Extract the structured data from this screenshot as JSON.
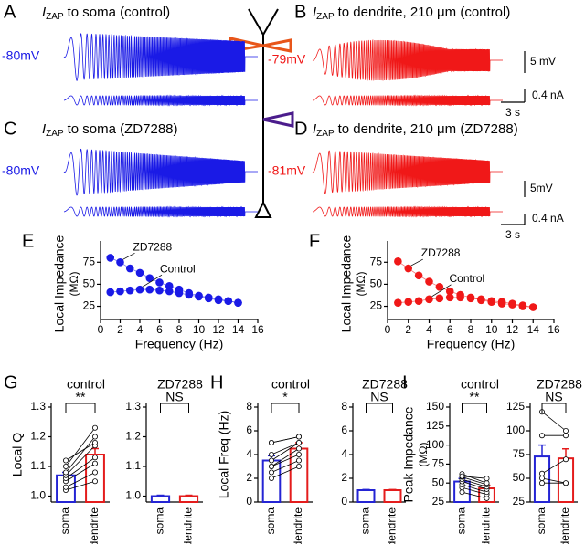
{
  "traces": [
    {
      "panel": "A",
      "current": "I",
      "current_sub": "ZAP",
      "title": "to soma (control)",
      "vm": "-80mV",
      "color": "#1a1ae6"
    },
    {
      "panel": "B",
      "current": "I",
      "current_sub": "ZAP",
      "title": "to dendrite, 210 μm (control)",
      "vm": "-79mV",
      "color": "#f01818"
    },
    {
      "panel": "C",
      "current": "I",
      "current_sub": "ZAP",
      "title": "to soma (ZD7288)",
      "vm": "-80mV",
      "color": "#1a1ae6"
    },
    {
      "panel": "D",
      "current": "I",
      "current_sub": "ZAP",
      "title": "to dendrite, 210 μm (ZD7288)",
      "vm": "-81mV",
      "color": "#f01818"
    }
  ],
  "scale_bars": [
    {
      "voltage": "5 mV",
      "current": "0.4 nA",
      "time": "3 s"
    },
    {
      "voltage": "5mV",
      "current": "0.4 nA",
      "time": "3 s"
    }
  ],
  "chart_data": [
    {
      "type": "line",
      "panel": "E",
      "xlabel": "Frequency (Hz)",
      "ylabel": "Local Impedance",
      "yunit": "(MΩ)",
      "x": [
        1,
        2,
        3,
        4,
        5,
        6,
        7,
        8,
        9,
        10,
        11,
        12,
        13,
        14
      ],
      "series": [
        {
          "name": "ZD7288",
          "color": "#1a1ae6",
          "values": [
            80,
            75,
            68,
            63,
            57,
            52,
            48,
            44,
            40,
            37,
            35,
            33,
            31,
            29
          ]
        },
        {
          "name": "Control",
          "color": "#1a1ae6",
          "values": [
            41,
            42,
            43,
            44,
            44,
            43,
            42,
            40,
            38,
            36,
            34,
            32,
            31,
            29
          ]
        }
      ],
      "xlim": [
        0,
        16
      ],
      "xticks": [
        0,
        2,
        4,
        6,
        8,
        10,
        12,
        14,
        16
      ],
      "ylim": [
        10,
        95
      ],
      "yticks": [
        25,
        50,
        75
      ]
    },
    {
      "type": "line",
      "panel": "F",
      "xlabel": "Frequency (Hz)",
      "ylabel": "Local Impedance",
      "yunit": "(MΩ)",
      "x": [
        1,
        2,
        3,
        4,
        5,
        6,
        7,
        8,
        9,
        10,
        11,
        12,
        13,
        14
      ],
      "series": [
        {
          "name": "ZD7288",
          "color": "#f01818",
          "values": [
            76,
            68,
            60,
            53,
            47,
            42,
            38,
            35,
            32,
            30,
            28,
            27,
            25,
            24
          ]
        },
        {
          "name": "Control",
          "color": "#f01818",
          "values": [
            29,
            30,
            31,
            33,
            34,
            35,
            35,
            34,
            33,
            31,
            30,
            28,
            26,
            24
          ]
        }
      ],
      "xlim": [
        0,
        16
      ],
      "xticks": [
        0,
        2,
        4,
        6,
        8,
        10,
        12,
        14,
        16
      ],
      "ylim": [
        10,
        95
      ],
      "yticks": [
        25,
        50,
        75
      ]
    },
    {
      "type": "bar",
      "panel": "G",
      "title": "control",
      "ylabel": "Local Q",
      "significance": "**",
      "categories": [
        "soma",
        "dendrite"
      ],
      "values": [
        1.07,
        1.14
      ],
      "errors": [
        0.01,
        0.02
      ],
      "colors": [
        "#2424d4",
        "#e41c1c"
      ],
      "paired": [
        [
          1.02,
          1.05
        ],
        [
          1.03,
          1.08
        ],
        [
          1.05,
          1.11
        ],
        [
          1.06,
          1.13
        ],
        [
          1.07,
          1.17
        ],
        [
          1.08,
          1.2
        ],
        [
          1.1,
          1.23
        ],
        [
          1.12,
          1.18
        ]
      ],
      "ylim": [
        0.98,
        1.3
      ],
      "yticks": [
        {
          "value": 1.0,
          "label": "1.0"
        },
        1.1,
        1.2,
        1.3
      ]
    },
    {
      "type": "bar",
      "title": "ZD7288",
      "significance": "NS",
      "categories": [
        "soma",
        "dendrite"
      ],
      "values": [
        1.0,
        1.0
      ],
      "errors": [
        0.003,
        0.003
      ],
      "colors": [
        "#2424d4",
        "#e41c1c"
      ],
      "ylim": [
        0.98,
        1.3
      ],
      "yticks": [
        {
          "value": 1.0,
          "label": "1.0"
        },
        1.1,
        1.2,
        1.3
      ]
    },
    {
      "type": "bar",
      "panel": "H",
      "title": "control",
      "ylabel": "Local Freq (Hz)",
      "significance": "*",
      "categories": [
        "soma",
        "dendrite"
      ],
      "values": [
        3.5,
        4.5
      ],
      "errors": [
        0.4,
        0.5
      ],
      "colors": [
        "#2424d4",
        "#e41c1c"
      ],
      "paired": [
        [
          2.0,
          3.0
        ],
        [
          2.5,
          3.5
        ],
        [
          3.0,
          4.0
        ],
        [
          3.0,
          4.5
        ],
        [
          3.5,
          5.0
        ],
        [
          4.0,
          5.0
        ],
        [
          5.0,
          5.5
        ],
        [
          5.0,
          5.5
        ]
      ],
      "ylim": [
        0,
        8
      ],
      "yticks": [
        0,
        2,
        4,
        6,
        8
      ]
    },
    {
      "type": "bar",
      "title": "ZD7288",
      "significance": "NS",
      "categories": [
        "soma",
        "dendrite"
      ],
      "values": [
        1.0,
        1.0
      ],
      "errors": [
        0.05,
        0.05
      ],
      "colors": [
        "#2424d4",
        "#e41c1c"
      ],
      "ylim": [
        0,
        8
      ],
      "yticks": [
        0,
        2,
        4,
        6,
        8
      ]
    },
    {
      "type": "bar",
      "panel": "I",
      "title": "control",
      "ylabel": "Peak Impedance",
      "yunit": "(MΩ)",
      "significance": "**",
      "categories": [
        "soma",
        "dendrite"
      ],
      "values": [
        52,
        43
      ],
      "errors": [
        4,
        4
      ],
      "colors": [
        "#2424d4",
        "#e41c1c"
      ],
      "paired": [
        [
          38,
          30
        ],
        [
          44,
          35
        ],
        [
          48,
          38
        ],
        [
          52,
          42
        ],
        [
          55,
          45
        ],
        [
          58,
          48
        ],
        [
          62,
          50
        ],
        [
          59,
          56
        ]
      ],
      "ylim": [
        25,
        150
      ],
      "yticks": [
        25,
        50,
        75,
        100,
        125,
        150
      ]
    },
    {
      "type": "bar",
      "title": "ZD7288",
      "significance": "NS",
      "categories": [
        "soma",
        "dendrite"
      ],
      "values": [
        73,
        71
      ],
      "errors": [
        12,
        10
      ],
      "colors": [
        "#2424d4",
        "#e41c1c"
      ],
      "paired": [
        [
          120,
          100
        ],
        [
          95,
          95
        ],
        [
          55,
          70
        ],
        [
          45,
          45
        ],
        [
          50,
          45
        ]
      ],
      "ylim": [
        25,
        125
      ],
      "yticks": [
        25,
        50,
        75,
        100,
        125
      ]
    }
  ]
}
